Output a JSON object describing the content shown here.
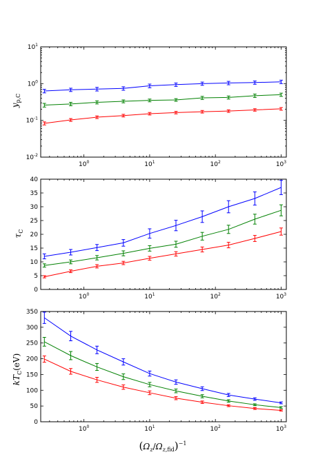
{
  "chart_data": [
    {
      "type": "line",
      "xscale": "log",
      "yscale": "log",
      "xlim": [
        0.22,
        1200
      ],
      "ylim": [
        0.01,
        10
      ],
      "ylabel": "y_{p,C}",
      "xlabel": "",
      "xticks": [
        {
          "v": 1,
          "b": "10",
          "e": "0"
        },
        {
          "v": 10,
          "b": "10",
          "e": "1"
        },
        {
          "v": 100,
          "b": "10",
          "e": "2"
        },
        {
          "v": 1000,
          "b": "10",
          "e": "3"
        }
      ],
      "yticks": [
        {
          "v": 0.01,
          "b": "10",
          "e": "-2"
        },
        {
          "v": 0.1,
          "b": "10",
          "e": "-1"
        },
        {
          "v": 1,
          "b": "10",
          "e": "0"
        },
        {
          "v": 10,
          "b": "10",
          "e": "1"
        }
      ],
      "x": [
        0.25,
        0.63,
        1.58,
        3.98,
        10,
        25.1,
        63.1,
        158.5,
        398,
        1000
      ],
      "series": [
        {
          "color": "#0000ff",
          "values": [
            0.63,
            0.68,
            0.71,
            0.74,
            0.87,
            0.94,
            1.0,
            1.04,
            1.07,
            1.12
          ],
          "err": [
            0.07,
            0.07,
            0.08,
            0.08,
            0.1,
            0.1,
            0.1,
            0.11,
            0.11,
            0.12
          ]
        },
        {
          "color": "#008000",
          "values": [
            0.26,
            0.28,
            0.31,
            0.33,
            0.35,
            0.36,
            0.41,
            0.42,
            0.47,
            0.5
          ],
          "err": [
            0.03,
            0.03,
            0.03,
            0.03,
            0.03,
            0.03,
            0.04,
            0.04,
            0.05,
            0.05
          ]
        },
        {
          "color": "#ff0000",
          "values": [
            0.083,
            0.103,
            0.122,
            0.135,
            0.152,
            0.163,
            0.172,
            0.179,
            0.193,
            0.206
          ],
          "err": [
            0.008,
            0.009,
            0.01,
            0.011,
            0.012,
            0.013,
            0.014,
            0.014,
            0.015,
            0.017
          ]
        }
      ]
    },
    {
      "type": "line",
      "xscale": "log",
      "yscale": "linear",
      "xlim": [
        0.22,
        1200
      ],
      "ylim": [
        0,
        40
      ],
      "ylabel": "τ_C",
      "xlabel": "",
      "xticks": [
        {
          "v": 1,
          "b": "10",
          "e": "0"
        },
        {
          "v": 10,
          "b": "10",
          "e": "1"
        },
        {
          "v": 100,
          "b": "10",
          "e": "2"
        },
        {
          "v": 1000,
          "b": "10",
          "e": "3"
        }
      ],
      "yticks": [
        0,
        5,
        10,
        15,
        20,
        25,
        30,
        35,
        40
      ],
      "x": [
        0.25,
        0.63,
        1.58,
        3.98,
        10,
        25.1,
        63.1,
        158.5,
        398,
        1000
      ],
      "series": [
        {
          "color": "#0000ff",
          "values": [
            12.0,
            13.5,
            15.2,
            16.9,
            20.3,
            23.2,
            26.4,
            30.0,
            33.0,
            37.0
          ],
          "err": [
            0.9,
            1.0,
            1.1,
            1.2,
            1.7,
            1.9,
            2.1,
            2.2,
            2.4,
            2.6
          ]
        },
        {
          "color": "#008000",
          "values": [
            8.7,
            10.0,
            11.5,
            13.1,
            14.9,
            16.4,
            19.3,
            21.8,
            25.5,
            28.7
          ],
          "err": [
            0.6,
            0.7,
            0.8,
            0.9,
            1.0,
            1.1,
            1.4,
            1.5,
            1.8,
            2.0
          ]
        },
        {
          "color": "#ff0000",
          "values": [
            4.6,
            6.6,
            8.4,
            9.6,
            11.3,
            12.9,
            14.5,
            16.1,
            18.5,
            21.0
          ],
          "err": [
            0.4,
            0.5,
            0.6,
            0.6,
            0.7,
            0.8,
            0.9,
            1.0,
            1.1,
            1.3
          ]
        }
      ]
    },
    {
      "type": "line",
      "xscale": "log",
      "yscale": "linear",
      "xlim": [
        0.22,
        1200
      ],
      "ylim": [
        0,
        350
      ],
      "ylabel": "kT_C (eV)",
      "xlabel": "(Ω_z/Ω_z,fid)^-1",
      "xticks": [
        {
          "v": 1,
          "b": "10",
          "e": "0"
        },
        {
          "v": 10,
          "b": "10",
          "e": "1"
        },
        {
          "v": 100,
          "b": "10",
          "e": "2"
        },
        {
          "v": 1000,
          "b": "10",
          "e": "3"
        }
      ],
      "yticks": [
        0,
        50,
        100,
        150,
        200,
        250,
        300,
        350
      ],
      "x": [
        0.25,
        0.63,
        1.58,
        3.98,
        10,
        25.1,
        63.1,
        158.5,
        398,
        1000
      ],
      "series": [
        {
          "color": "#0000ff",
          "values": [
            330,
            272,
            228,
            190,
            153,
            126,
            105,
            85,
            72,
            60
          ],
          "err": [
            18,
            15,
            12,
            10,
            8,
            7,
            6,
            5,
            4,
            3
          ]
        },
        {
          "color": "#008000",
          "values": [
            254,
            210,
            174,
            143,
            118,
            98,
            81,
            66,
            54,
            45
          ],
          "err": [
            14,
            13,
            11,
            9,
            7,
            6,
            5,
            4,
            3,
            3
          ]
        },
        {
          "color": "#ff0000",
          "values": [
            199,
            160,
            133,
            110,
            92,
            75,
            62,
            51,
            42,
            36
          ],
          "err": [
            10,
            9,
            8,
            7,
            6,
            5,
            4,
            3,
            3,
            2
          ]
        }
      ]
    }
  ]
}
